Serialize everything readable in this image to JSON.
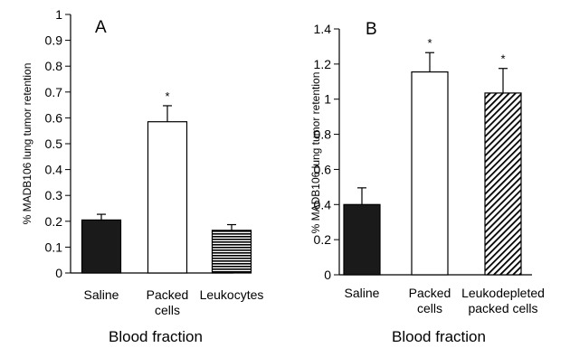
{
  "chart_data": [
    {
      "type": "bar",
      "panel_label": "A",
      "categories": [
        [
          "Saline"
        ],
        [
          "Packed",
          "cells"
        ],
        [
          "Leukocytes"
        ]
      ],
      "values": [
        0.205,
        0.585,
        0.165
      ],
      "errors": [
        0.022,
        0.062,
        0.022
      ],
      "significance": [
        "",
        "*",
        ""
      ],
      "fills": [
        "solid",
        "open",
        "horizontal-stripes"
      ],
      "ylim": [
        0,
        1
      ],
      "yticks": [
        0,
        0.1,
        0.2,
        0.3,
        0.4,
        0.5,
        0.6,
        0.7,
        0.8,
        0.9,
        1
      ],
      "ytick_labels": [
        "0",
        "0.1",
        "0.2",
        "0.3",
        "0.4",
        "0.5",
        "0.6",
        "0.7",
        "0.8",
        "0.9",
        "1"
      ],
      "ylabel": "% MADB106 lung tumor retention",
      "xlabel": "Blood fraction"
    },
    {
      "type": "bar",
      "panel_label": "B",
      "categories": [
        [
          "Saline"
        ],
        [
          "Packed",
          "cells"
        ],
        [
          "Leukodepleted",
          "packed cells"
        ]
      ],
      "values": [
        0.4,
        1.155,
        1.035
      ],
      "errors": [
        0.095,
        0.11,
        0.14
      ],
      "significance": [
        "",
        "*",
        "*"
      ],
      "fills": [
        "solid",
        "open",
        "diagonal-hatch"
      ],
      "ylim": [
        0,
        1.4
      ],
      "yticks": [
        0,
        0.2,
        0.4,
        0.6,
        0.8,
        1,
        1.2,
        1.4
      ],
      "ytick_labels": [
        "0",
        "0.2",
        "0.4",
        "0.6",
        "0.8",
        "1",
        "1.2",
        "1.4"
      ],
      "ylabel": "% MADB106 lung tumor retention",
      "xlabel": "Blood fraction"
    }
  ],
  "colors": {
    "solid_fill": "#1a1a1a",
    "stroke": "#000000",
    "background": "#ffffff"
  }
}
